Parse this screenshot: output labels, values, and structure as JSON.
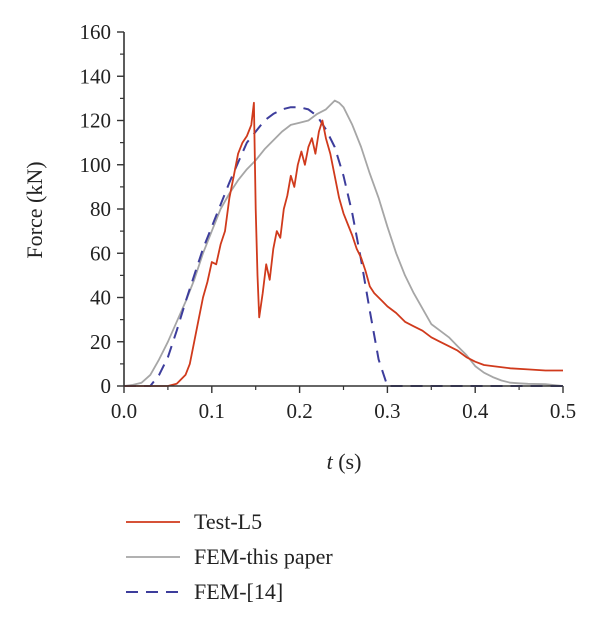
{
  "chart_data": {
    "type": "line",
    "title": "",
    "xlabel_var": "t",
    "xlabel_unit": " (s)",
    "ylabel": "Force (kN)",
    "xlim": [
      0.0,
      0.5
    ],
    "ylim": [
      0,
      160
    ],
    "x_ticks": [
      0.0,
      0.1,
      0.2,
      0.3,
      0.4,
      0.5
    ],
    "x_tick_labels": [
      "0.0",
      "0.1",
      "0.2",
      "0.3",
      "0.4",
      "0.5"
    ],
    "y_ticks": [
      0,
      20,
      40,
      60,
      80,
      100,
      120,
      140,
      160
    ],
    "y_tick_labels": [
      "0",
      "20",
      "40",
      "60",
      "80",
      "100",
      "120",
      "140",
      "160"
    ],
    "grid": false,
    "legend_position": "bottom",
    "series": [
      {
        "name": "Test-L5",
        "color": "#d03a1c",
        "style": "solid",
        "points": [
          [
            0.0,
            0
          ],
          [
            0.05,
            0
          ],
          [
            0.06,
            1
          ],
          [
            0.07,
            5
          ],
          [
            0.075,
            10
          ],
          [
            0.08,
            20
          ],
          [
            0.085,
            30
          ],
          [
            0.09,
            40
          ],
          [
            0.095,
            47
          ],
          [
            0.1,
            56
          ],
          [
            0.105,
            55
          ],
          [
            0.11,
            64
          ],
          [
            0.115,
            70
          ],
          [
            0.12,
            85
          ],
          [
            0.125,
            95
          ],
          [
            0.13,
            105
          ],
          [
            0.135,
            110
          ],
          [
            0.14,
            113
          ],
          [
            0.145,
            118
          ],
          [
            0.148,
            128
          ],
          [
            0.15,
            80
          ],
          [
            0.152,
            50
          ],
          [
            0.154,
            31
          ],
          [
            0.158,
            42
          ],
          [
            0.162,
            55
          ],
          [
            0.166,
            48
          ],
          [
            0.17,
            62
          ],
          [
            0.174,
            70
          ],
          [
            0.178,
            67
          ],
          [
            0.182,
            80
          ],
          [
            0.186,
            86
          ],
          [
            0.19,
            95
          ],
          [
            0.194,
            90
          ],
          [
            0.198,
            100
          ],
          [
            0.202,
            106
          ],
          [
            0.206,
            100
          ],
          [
            0.21,
            108
          ],
          [
            0.214,
            112
          ],
          [
            0.218,
            105
          ],
          [
            0.222,
            115
          ],
          [
            0.226,
            120
          ],
          [
            0.23,
            112
          ],
          [
            0.235,
            105
          ],
          [
            0.24,
            95
          ],
          [
            0.245,
            85
          ],
          [
            0.25,
            78
          ],
          [
            0.255,
            73
          ],
          [
            0.26,
            68
          ],
          [
            0.265,
            62
          ],
          [
            0.27,
            58
          ],
          [
            0.275,
            52
          ],
          [
            0.28,
            45
          ],
          [
            0.285,
            42
          ],
          [
            0.29,
            40
          ],
          [
            0.295,
            38
          ],
          [
            0.3,
            36
          ],
          [
            0.31,
            33
          ],
          [
            0.32,
            29
          ],
          [
            0.33,
            27
          ],
          [
            0.34,
            25
          ],
          [
            0.35,
            22
          ],
          [
            0.36,
            20
          ],
          [
            0.37,
            18
          ],
          [
            0.38,
            16
          ],
          [
            0.39,
            13
          ],
          [
            0.4,
            11
          ],
          [
            0.41,
            9.5
          ],
          [
            0.42,
            9
          ],
          [
            0.44,
            8
          ],
          [
            0.46,
            7.5
          ],
          [
            0.48,
            7
          ],
          [
            0.5,
            7
          ]
        ]
      },
      {
        "name": "FEM-this paper",
        "color": "#a6a6a6",
        "style": "solid",
        "points": [
          [
            0.0,
            0
          ],
          [
            0.01,
            0.5
          ],
          [
            0.02,
            1.5
          ],
          [
            0.03,
            5
          ],
          [
            0.04,
            12
          ],
          [
            0.05,
            20
          ],
          [
            0.06,
            29
          ],
          [
            0.07,
            38
          ],
          [
            0.08,
            48
          ],
          [
            0.09,
            60
          ],
          [
            0.1,
            70
          ],
          [
            0.11,
            80
          ],
          [
            0.12,
            87
          ],
          [
            0.13,
            93
          ],
          [
            0.14,
            98
          ],
          [
            0.15,
            102
          ],
          [
            0.16,
            107
          ],
          [
            0.17,
            111
          ],
          [
            0.18,
            115
          ],
          [
            0.19,
            118
          ],
          [
            0.2,
            119
          ],
          [
            0.21,
            120
          ],
          [
            0.22,
            123
          ],
          [
            0.23,
            125
          ],
          [
            0.24,
            129
          ],
          [
            0.245,
            128
          ],
          [
            0.25,
            126
          ],
          [
            0.26,
            118
          ],
          [
            0.27,
            108
          ],
          [
            0.28,
            96
          ],
          [
            0.29,
            85
          ],
          [
            0.3,
            72
          ],
          [
            0.31,
            60
          ],
          [
            0.32,
            50
          ],
          [
            0.33,
            42
          ],
          [
            0.34,
            35
          ],
          [
            0.35,
            28
          ],
          [
            0.36,
            25
          ],
          [
            0.37,
            22
          ],
          [
            0.38,
            18
          ],
          [
            0.39,
            14
          ],
          [
            0.4,
            9
          ],
          [
            0.41,
            6
          ],
          [
            0.42,
            4
          ],
          [
            0.43,
            2.5
          ],
          [
            0.44,
            1.5
          ],
          [
            0.45,
            1.2
          ],
          [
            0.46,
            1
          ],
          [
            0.48,
            0.8
          ],
          [
            0.5,
            0
          ]
        ]
      },
      {
        "name": "FEM-[14]",
        "color": "#3d3d9c",
        "style": "dashed",
        "points": [
          [
            0.0,
            0
          ],
          [
            0.03,
            0
          ],
          [
            0.04,
            5
          ],
          [
            0.05,
            13
          ],
          [
            0.06,
            25
          ],
          [
            0.07,
            38
          ],
          [
            0.08,
            50
          ],
          [
            0.09,
            62
          ],
          [
            0.1,
            72
          ],
          [
            0.11,
            82
          ],
          [
            0.12,
            92
          ],
          [
            0.13,
            101
          ],
          [
            0.14,
            110
          ],
          [
            0.15,
            115
          ],
          [
            0.16,
            120
          ],
          [
            0.17,
            123
          ],
          [
            0.18,
            125
          ],
          [
            0.19,
            126
          ],
          [
            0.2,
            126
          ],
          [
            0.21,
            125
          ],
          [
            0.22,
            122
          ],
          [
            0.23,
            116
          ],
          [
            0.24,
            108
          ],
          [
            0.25,
            95
          ],
          [
            0.26,
            78
          ],
          [
            0.27,
            57
          ],
          [
            0.28,
            34
          ],
          [
            0.29,
            12
          ],
          [
            0.3,
            0
          ],
          [
            0.5,
            0
          ]
        ]
      }
    ]
  }
}
